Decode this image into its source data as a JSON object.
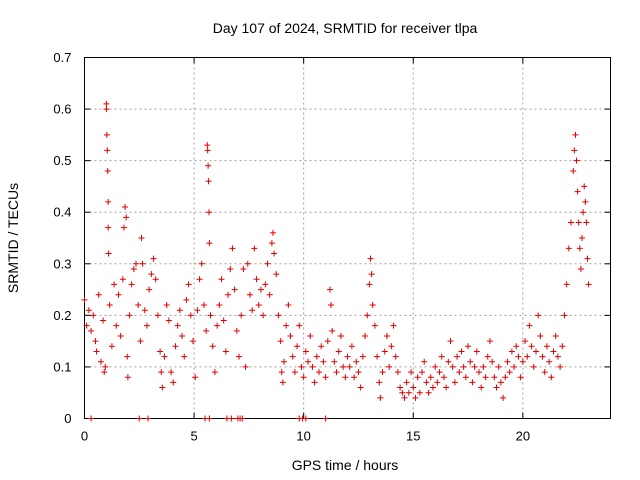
{
  "chart_data": {
    "type": "scatter",
    "title": "Day 107 of 2024, SRMTID for receiver tlpa",
    "xlabel": "GPS time / hours",
    "ylabel": "SRMTID / TECUs",
    "xlim": [
      0,
      24
    ],
    "ylim": [
      0,
      0.7
    ],
    "xticks": [
      0,
      5,
      10,
      15,
      20
    ],
    "xtick_labels": [
      "0",
      "5",
      "10",
      "15",
      "20"
    ],
    "yticks": [
      0,
      0.1,
      0.2,
      0.3,
      0.4,
      0.5,
      0.6,
      0.7
    ],
    "ytick_labels": [
      "0",
      "0.1",
      "0.2",
      "0.3",
      "0.4",
      "0.5",
      "0.6",
      "0.7"
    ],
    "grid": true,
    "marker": "+",
    "marker_color": "#e00000",
    "series": [
      {
        "name": "SRMTID",
        "points": [
          [
            0.0,
            0.23
          ],
          [
            0.1,
            0.18
          ],
          [
            0.2,
            0.21
          ],
          [
            0.3,
            0.17
          ],
          [
            0.4,
            0.2
          ],
          [
            0.5,
            0.15
          ],
          [
            0.55,
            0.13
          ],
          [
            0.65,
            0.24
          ],
          [
            0.75,
            0.11
          ],
          [
            0.85,
            0.19
          ],
          [
            0.9,
            0.09
          ],
          [
            0.95,
            0.1
          ],
          [
            1.0,
            0.61
          ],
          [
            1.0,
            0.6
          ],
          [
            1.02,
            0.55
          ],
          [
            1.04,
            0.52
          ],
          [
            1.06,
            0.48
          ],
          [
            1.08,
            0.42
          ],
          [
            1.08,
            0.37
          ],
          [
            1.1,
            0.32
          ],
          [
            1.15,
            0.22
          ],
          [
            1.25,
            0.14
          ],
          [
            1.35,
            0.26
          ],
          [
            1.45,
            0.18
          ],
          [
            1.55,
            0.24
          ],
          [
            1.65,
            0.16
          ],
          [
            1.75,
            0.27
          ],
          [
            1.8,
            0.37
          ],
          [
            1.85,
            0.41
          ],
          [
            1.9,
            0.39
          ],
          [
            1.95,
            0.12
          ],
          [
            1.98,
            0.08
          ],
          [
            2.05,
            0.2
          ],
          [
            2.15,
            0.26
          ],
          [
            2.25,
            0.29
          ],
          [
            2.35,
            0.3
          ],
          [
            2.45,
            0.22
          ],
          [
            2.55,
            0.15
          ],
          [
            2.6,
            0.35
          ],
          [
            2.65,
            0.3
          ],
          [
            2.75,
            0.21
          ],
          [
            2.85,
            0.18
          ],
          [
            2.95,
            0.25
          ],
          [
            3.05,
            0.28
          ],
          [
            3.15,
            0.31
          ],
          [
            3.25,
            0.27
          ],
          [
            3.35,
            0.2
          ],
          [
            3.45,
            0.13
          ],
          [
            3.5,
            0.09
          ],
          [
            3.55,
            0.06
          ],
          [
            3.65,
            0.12
          ],
          [
            3.75,
            0.22
          ],
          [
            3.85,
            0.19
          ],
          [
            3.95,
            0.09
          ],
          [
            4.05,
            0.07
          ],
          [
            4.15,
            0.14
          ],
          [
            4.25,
            0.18
          ],
          [
            4.35,
            0.21
          ],
          [
            4.45,
            0.16
          ],
          [
            4.55,
            0.12
          ],
          [
            4.65,
            0.23
          ],
          [
            4.75,
            0.26
          ],
          [
            4.85,
            0.2
          ],
          [
            4.95,
            0.15
          ],
          [
            5.05,
            0.08
          ],
          [
            5.15,
            0.21
          ],
          [
            5.25,
            0.27
          ],
          [
            5.35,
            0.3
          ],
          [
            5.45,
            0.22
          ],
          [
            5.55,
            0.17
          ],
          [
            5.6,
            0.53
          ],
          [
            5.62,
            0.52
          ],
          [
            5.64,
            0.49
          ],
          [
            5.66,
            0.46
          ],
          [
            5.68,
            0.4
          ],
          [
            5.7,
            0.34
          ],
          [
            5.75,
            0.2
          ],
          [
            5.85,
            0.14
          ],
          [
            5.95,
            0.09
          ],
          [
            6.05,
            0.18
          ],
          [
            6.15,
            0.22
          ],
          [
            6.25,
            0.27
          ],
          [
            6.35,
            0.19
          ],
          [
            6.45,
            0.13
          ],
          [
            6.55,
            0.24
          ],
          [
            6.65,
            0.29
          ],
          [
            6.75,
            0.33
          ],
          [
            6.85,
            0.25
          ],
          [
            6.95,
            0.17
          ],
          [
            7.05,
            0.12
          ],
          [
            7.15,
            0.2
          ],
          [
            7.25,
            0.29
          ],
          [
            7.35,
            0.1
          ],
          [
            7.45,
            0.3
          ],
          [
            7.55,
            0.24
          ],
          [
            7.65,
            0.21
          ],
          [
            7.75,
            0.33
          ],
          [
            7.85,
            0.27
          ],
          [
            7.95,
            0.22
          ],
          [
            8.05,
            0.25
          ],
          [
            8.15,
            0.2
          ],
          [
            8.25,
            0.26
          ],
          [
            8.35,
            0.3
          ],
          [
            8.45,
            0.24
          ],
          [
            8.55,
            0.34
          ],
          [
            8.6,
            0.36
          ],
          [
            8.65,
            0.32
          ],
          [
            8.75,
            0.28
          ],
          [
            8.85,
            0.2
          ],
          [
            8.95,
            0.15
          ],
          [
            9.0,
            0.09
          ],
          [
            9.05,
            0.07
          ],
          [
            9.1,
            0.11
          ],
          [
            9.2,
            0.18
          ],
          [
            9.3,
            0.22
          ],
          [
            9.4,
            0.16
          ],
          [
            9.5,
            0.12
          ],
          [
            9.6,
            0.09
          ],
          [
            9.7,
            0.14
          ],
          [
            9.8,
            0.18
          ],
          [
            9.9,
            0.1
          ],
          [
            10.0,
            0.08
          ],
          [
            10.1,
            0.13
          ],
          [
            10.2,
            0.11
          ],
          [
            10.3,
            0.16
          ],
          [
            10.4,
            0.1
          ],
          [
            10.5,
            0.07
          ],
          [
            10.6,
            0.12
          ],
          [
            10.7,
            0.09
          ],
          [
            10.8,
            0.14
          ],
          [
            10.9,
            0.11
          ],
          [
            11.0,
            0.08
          ],
          [
            11.1,
            0.15
          ],
          [
            11.2,
            0.25
          ],
          [
            11.25,
            0.22
          ],
          [
            11.3,
            0.17
          ],
          [
            11.4,
            0.11
          ],
          [
            11.5,
            0.09
          ],
          [
            11.6,
            0.13
          ],
          [
            11.7,
            0.16
          ],
          [
            11.8,
            0.1
          ],
          [
            11.9,
            0.08
          ],
          [
            12.0,
            0.12
          ],
          [
            12.1,
            0.1
          ],
          [
            12.2,
            0.14
          ],
          [
            12.3,
            0.08
          ],
          [
            12.4,
            0.11
          ],
          [
            12.5,
            0.09
          ],
          [
            12.6,
            0.06
          ],
          [
            12.7,
            0.12
          ],
          [
            12.8,
            0.16
          ],
          [
            12.9,
            0.2
          ],
          [
            13.0,
            0.26
          ],
          [
            13.05,
            0.31
          ],
          [
            13.1,
            0.28
          ],
          [
            13.15,
            0.22
          ],
          [
            13.25,
            0.18
          ],
          [
            13.35,
            0.12
          ],
          [
            13.45,
            0.07
          ],
          [
            13.5,
            0.04
          ],
          [
            13.6,
            0.09
          ],
          [
            13.7,
            0.13
          ],
          [
            13.8,
            0.16
          ],
          [
            13.9,
            0.1
          ],
          [
            14.0,
            0.14
          ],
          [
            14.1,
            0.18
          ],
          [
            14.2,
            0.12
          ],
          [
            14.3,
            0.09
          ],
          [
            14.4,
            0.06
          ],
          [
            14.5,
            0.05
          ],
          [
            14.6,
            0.04
          ],
          [
            14.7,
            0.07
          ],
          [
            14.8,
            0.05
          ],
          [
            14.9,
            0.09
          ],
          [
            15.0,
            0.06
          ],
          [
            15.1,
            0.04
          ],
          [
            15.2,
            0.08
          ],
          [
            15.3,
            0.05
          ],
          [
            15.4,
            0.09
          ],
          [
            15.5,
            0.11
          ],
          [
            15.6,
            0.07
          ],
          [
            15.7,
            0.05
          ],
          [
            15.8,
            0.08
          ],
          [
            15.9,
            0.06
          ],
          [
            16.0,
            0.1
          ],
          [
            16.1,
            0.07
          ],
          [
            16.2,
            0.09
          ],
          [
            16.3,
            0.12
          ],
          [
            16.4,
            0.08
          ],
          [
            16.5,
            0.06
          ],
          [
            16.6,
            0.11
          ],
          [
            16.7,
            0.15
          ],
          [
            16.8,
            0.1
          ],
          [
            16.9,
            0.07
          ],
          [
            17.0,
            0.12
          ],
          [
            17.1,
            0.09
          ],
          [
            17.2,
            0.13
          ],
          [
            17.3,
            0.1
          ],
          [
            17.4,
            0.08
          ],
          [
            17.5,
            0.14
          ],
          [
            17.6,
            0.11
          ],
          [
            17.7,
            0.07
          ],
          [
            17.8,
            0.1
          ],
          [
            17.9,
            0.13
          ],
          [
            18.0,
            0.09
          ],
          [
            18.1,
            0.06
          ],
          [
            18.2,
            0.1
          ],
          [
            18.3,
            0.08
          ],
          [
            18.4,
            0.12
          ],
          [
            18.5,
            0.15
          ],
          [
            18.6,
            0.11
          ],
          [
            18.7,
            0.08
          ],
          [
            18.8,
            0.06
          ],
          [
            18.9,
            0.1
          ],
          [
            19.0,
            0.07
          ],
          [
            19.1,
            0.04
          ],
          [
            19.2,
            0.08
          ],
          [
            19.3,
            0.11
          ],
          [
            19.4,
            0.09
          ],
          [
            19.5,
            0.13
          ],
          [
            19.6,
            0.1
          ],
          [
            19.7,
            0.14
          ],
          [
            19.8,
            0.12
          ],
          [
            19.9,
            0.08
          ],
          [
            20.0,
            0.11
          ],
          [
            20.1,
            0.15
          ],
          [
            20.2,
            0.12
          ],
          [
            20.3,
            0.18
          ],
          [
            20.4,
            0.14
          ],
          [
            20.5,
            0.1
          ],
          [
            20.6,
            0.13
          ],
          [
            20.7,
            0.2
          ],
          [
            20.8,
            0.16
          ],
          [
            20.9,
            0.12
          ],
          [
            21.0,
            0.09
          ],
          [
            21.1,
            0.14
          ],
          [
            21.2,
            0.11
          ],
          [
            21.3,
            0.08
          ],
          [
            21.4,
            0.13
          ],
          [
            21.5,
            0.16
          ],
          [
            21.6,
            0.12
          ],
          [
            21.7,
            0.1
          ],
          [
            21.8,
            0.14
          ],
          [
            21.9,
            0.2
          ],
          [
            22.0,
            0.26
          ],
          [
            22.1,
            0.33
          ],
          [
            22.2,
            0.38
          ],
          [
            22.3,
            0.48
          ],
          [
            22.35,
            0.52
          ],
          [
            22.4,
            0.55
          ],
          [
            22.45,
            0.5
          ],
          [
            22.5,
            0.44
          ],
          [
            22.55,
            0.38
          ],
          [
            22.6,
            0.33
          ],
          [
            22.65,
            0.29
          ],
          [
            22.7,
            0.35
          ],
          [
            22.75,
            0.4
          ],
          [
            22.8,
            0.45
          ],
          [
            22.85,
            0.42
          ],
          [
            22.9,
            0.38
          ],
          [
            22.95,
            0.31
          ],
          [
            23.0,
            0.26
          ],
          [
            0.3,
            0.0
          ],
          [
            2.5,
            0.0
          ],
          [
            2.9,
            0.0
          ],
          [
            5.5,
            0.0
          ],
          [
            5.7,
            0.0
          ],
          [
            6.5,
            0.0
          ],
          [
            6.7,
            0.0
          ],
          [
            7.0,
            0.0
          ],
          [
            7.1,
            0.0
          ],
          [
            7.2,
            0.0
          ],
          [
            9.8,
            0.0
          ],
          [
            9.95,
            0.0
          ],
          [
            10.1,
            0.0
          ],
          [
            11.0,
            0.0
          ]
        ]
      }
    ]
  }
}
